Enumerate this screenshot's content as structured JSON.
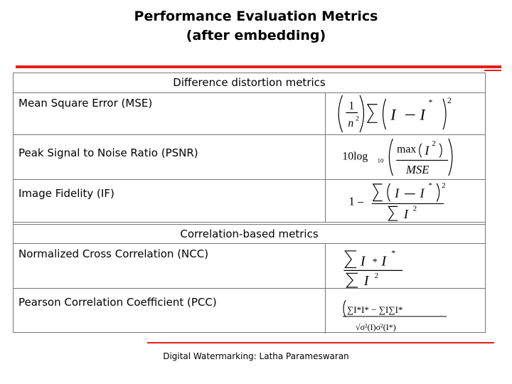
{
  "title": {
    "line1": "Performance Evaluation Metrics",
    "line2": "(after embedding)"
  },
  "sections": [
    {
      "heading": "Difference distortion metrics",
      "metrics": [
        {
          "name": "Mean Square Error (MSE)",
          "formula_icon": "mse-formula"
        },
        {
          "name": "Peak Signal to Noise Ratio (PSNR)",
          "formula_icon": "psnr-formula"
        },
        {
          "name": "Image Fidelity (IF)",
          "formula_icon": "if-formula"
        }
      ]
    },
    {
      "heading": "Correlation-based metrics",
      "metrics": [
        {
          "name": "Normalized Cross Correlation (NCC)",
          "formula_icon": "ncc-formula"
        },
        {
          "name": "Pearson Correlation Coefficient (PCC)",
          "formula_icon": "pcc-formula"
        }
      ]
    }
  ],
  "formula_text": {
    "one": "1",
    "n_squared": "n",
    "ten_log": "10log",
    "log_subscript": "10",
    "max": "max",
    "mse": "MSE",
    "one_minus": "1 –",
    "pcc_denominator": "√σ²(I)σ²(I*)",
    "pcc_numerator": "∑I*I* − ∑I∑I*"
  },
  "footer": "Digital Watermarking: Latha Parameswaran",
  "colors": {
    "accent": "#e41f17",
    "border": "#777777"
  }
}
